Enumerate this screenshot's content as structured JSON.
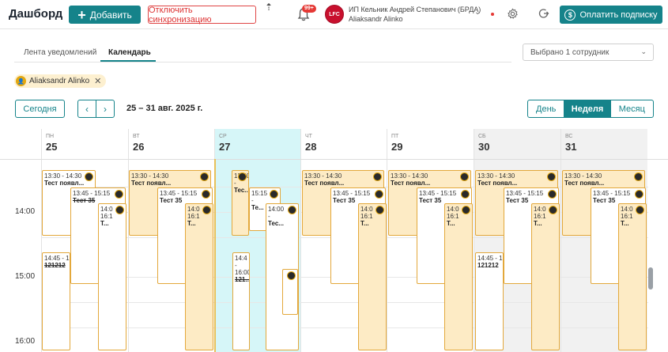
{
  "header": {
    "title": "Дашборд",
    "add_label": "Добавить",
    "sync_label": "Отключить синхронизацию",
    "badge": "99+",
    "org_logo_text": "LFC",
    "org_name": "ИП Кельник Андрей Степанович (БРДА)",
    "org_user": "Aliaksandr Alinko",
    "pay_label": "Оплатить подписку",
    "pay_symbol": "$"
  },
  "tabs": [
    {
      "label": "Лента уведомлений"
    },
    {
      "label": "Календарь"
    }
  ],
  "employee_select": {
    "value": "Выбрано 1 сотрудник"
  },
  "chip": {
    "label": "Aliaksandr Alinko"
  },
  "toolbar": {
    "today_label": "Сегодня",
    "prev": "‹",
    "next": "›",
    "range": "25 – 31 авг. 2025 г.",
    "views": [
      {
        "label": "День"
      },
      {
        "label": "Неделя"
      },
      {
        "label": "Месяц"
      }
    ]
  },
  "calendar": {
    "days": [
      {
        "abbr": "пн",
        "num": "25"
      },
      {
        "abbr": "вт",
        "num": "26"
      },
      {
        "abbr": "ср",
        "num": "27"
      },
      {
        "abbr": "чт",
        "num": "28"
      },
      {
        "abbr": "пт",
        "num": "29"
      },
      {
        "abbr": "сб",
        "num": "30"
      },
      {
        "abbr": "вс",
        "num": "31"
      }
    ],
    "times": [
      "14:00",
      "15:00",
      "16:00"
    ],
    "events": {
      "e1_time": "13:30 - 14:30",
      "e1_name": "Тест появл...",
      "e2_time": "13:45 - 15:15",
      "e2_name": "Тест 35",
      "e3_time": "14:0",
      "e3_name": "Т...",
      "e4_time": "14:45 - 16",
      "e4_name": "121212",
      "e5_time": "16:1",
      "w_e1_time": "13:30",
      "w_e1_dash": "-",
      "w_e1_name": "Тес...",
      "w_e2_time": "15:15",
      "w_e2_dash": "-",
      "w_e2_name": "Те...",
      "w_e3_time": "14:00",
      "w_e3_dash": "-",
      "w_e3_name": "Тес...",
      "w_e4_time": "14:4",
      "w_e4_dash": "-",
      "w_e4_t2": "16:00",
      "w_e4_name": "121..."
    }
  }
}
